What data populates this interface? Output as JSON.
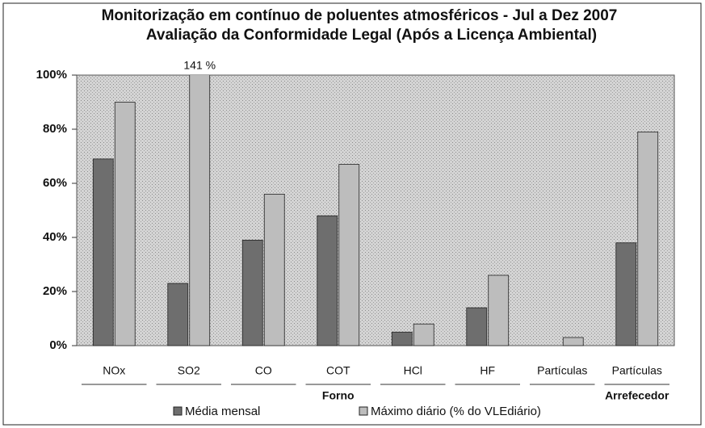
{
  "chart_data": {
    "type": "bar",
    "title": "Monitorização em contínuo de poluentes atmosféricos - Jul a Dez 2007",
    "subtitle": "Avaliação da Conformidade Legal (Após a Licença Ambiental)",
    "categories": [
      "NOx",
      "SO2",
      "CO",
      "COT",
      "HCl",
      "HF",
      "Partículas",
      "Partículas"
    ],
    "groups": [
      {
        "label": "Forno",
        "count": 7
      },
      {
        "label": "Arrefecedor",
        "count": 1
      }
    ],
    "series": [
      {
        "name": "Média mensal",
        "color": "#6e6e6e",
        "values": [
          69,
          23,
          39,
          48,
          5,
          14,
          0,
          38
        ]
      },
      {
        "name": "Máximo diário (% do VLEdiário)",
        "color": "#bdbdbd",
        "values": [
          90,
          141,
          56,
          67,
          8,
          26,
          3,
          79
        ],
        "value_labels": [
          null,
          "141 %",
          null,
          null,
          null,
          null,
          null,
          null
        ]
      }
    ],
    "ylim": [
      0,
      100
    ],
    "yticks": [
      {
        "value": 0,
        "label": "0%"
      },
      {
        "value": 20,
        "label": "20%"
      },
      {
        "value": 40,
        "label": "40%"
      },
      {
        "value": 60,
        "label": "60%"
      },
      {
        "value": 80,
        "label": "80%"
      },
      {
        "value": 100,
        "label": "100%"
      }
    ],
    "legend": "bottom"
  }
}
